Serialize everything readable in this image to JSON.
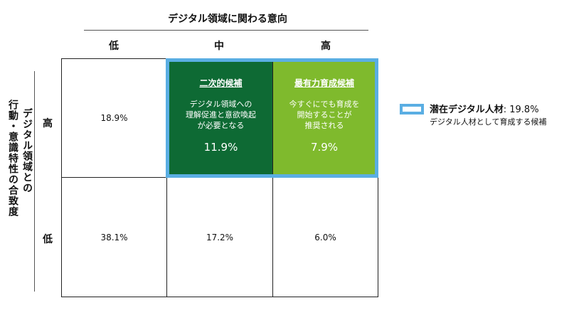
{
  "header": {
    "top_axis_title": "デジタル領域に関わる意向",
    "columns": [
      "低",
      "中",
      "高"
    ]
  },
  "side": {
    "axis_title_col1": "デジタル領域との",
    "axis_title_col2": "行動・意識特性の合致度",
    "rows": [
      "高",
      "低"
    ]
  },
  "grid": {
    "high_low": "18.9%",
    "high_mid": {
      "title": "二次的候補",
      "line1": "デジタル領域への",
      "line2": "理解促進と意欲喚起",
      "line3": "が必要となる",
      "value": "11.9%"
    },
    "high_high": {
      "title": "最有力育成候補",
      "line1": "今すぐにでも育成を",
      "line2": "開始することが",
      "line3": "推奨される",
      "value": "7.9%"
    },
    "low_low": "38.1%",
    "low_mid": "17.2%",
    "low_high": "6.0%"
  },
  "legend": {
    "label": "潜在デジタル人材",
    "value": ": 19.8%",
    "sub": "デジタル人材として育成する候補"
  },
  "colors": {
    "dark_green": "#0e6a34",
    "light_green": "#7fba2d",
    "highlight_blue": "#5aaee3"
  }
}
